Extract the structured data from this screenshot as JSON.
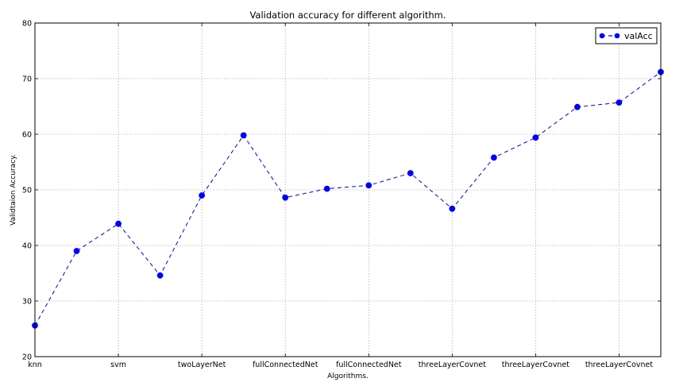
{
  "chart_data": {
    "type": "line",
    "title": "Validation accuracy for different algorithm.",
    "xlabel": "Algorithms.",
    "ylabel": "Validtaion Accuracy.",
    "xlim": [
      0,
      15
    ],
    "ylim": [
      20,
      80
    ],
    "x": [
      0,
      1,
      2,
      3,
      4,
      5,
      6,
      7,
      8,
      9,
      10,
      11,
      12,
      13,
      14,
      15
    ],
    "y_ticks": [
      20,
      30,
      40,
      50,
      60,
      70,
      80
    ],
    "x_ticks": [
      {
        "x": 0,
        "label": "knn"
      },
      {
        "x": 2,
        "label": "svm"
      },
      {
        "x": 4,
        "label": "twoLayerNet"
      },
      {
        "x": 6,
        "label": "fullConnectedNet"
      },
      {
        "x": 8,
        "label": "fullConnectedNet"
      },
      {
        "x": 10,
        "label": "threeLayerCovnet"
      },
      {
        "x": 12,
        "label": "threeLayerCovnet"
      },
      {
        "x": 14,
        "label": "threeLayerCovnet"
      }
    ],
    "grid": true,
    "legend_position": "top-right",
    "series": [
      {
        "name": "valAcc",
        "color": "#0000ff",
        "line_style": "dashed",
        "marker": "circle",
        "values": [
          25.6,
          39.0,
          43.9,
          34.6,
          49.0,
          59.8,
          48.6,
          50.2,
          50.8,
          53.0,
          46.6,
          55.8,
          59.4,
          64.9,
          65.7,
          71.2
        ]
      }
    ]
  }
}
